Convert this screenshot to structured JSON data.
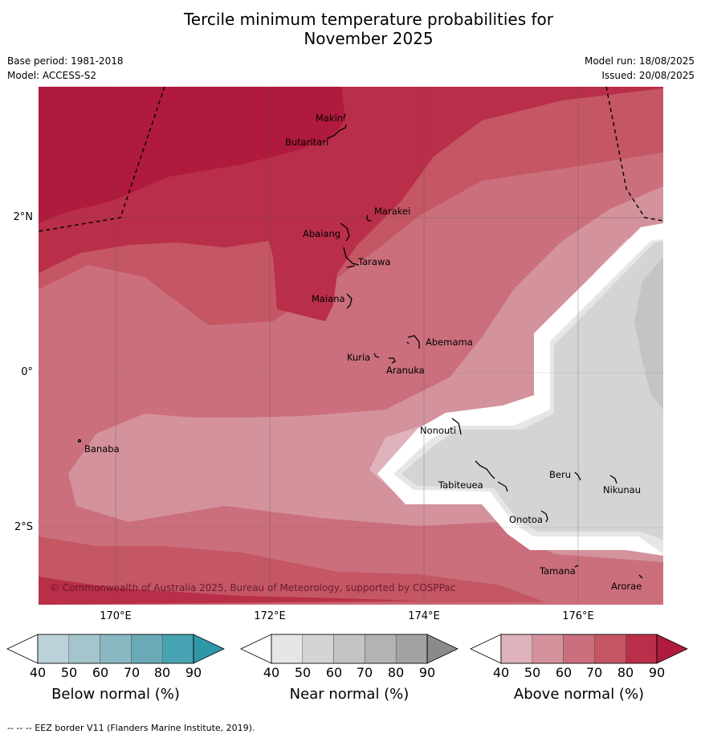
{
  "title": "Tercile minimum temperature probabilities for\nNovember 2025",
  "title_line1": "Tercile minimum temperature probabilities for",
  "title_line2": "November 2025",
  "base_period": "Base period: 1981-2018",
  "model": "Model: ACCESS-S2",
  "model_run": "Model run: 18/08/2025",
  "issued": "Issued: 20/08/2025",
  "copyright": "© Commonwealth of Australia 2025, Bureau of Meteorology, supported by COSPPac",
  "footer": "--  --  -- EEZ border V11 (Flanders Marine Institute, 2019).",
  "axes": {
    "lat_ticks": [
      "2°N",
      "0°",
      "2°S"
    ],
    "lon_ticks": [
      "170°E",
      "172°E",
      "174°E",
      "176°E"
    ]
  },
  "places": [
    "Makin",
    "Butaritari",
    "Marakei",
    "Abaiang",
    "Tarawa",
    "Maiana",
    "Abemama",
    "Kuria",
    "Aranuka",
    "Banaba",
    "Nonouti",
    "Tabiteuea",
    "Beru",
    "Nikunau",
    "Onotoa",
    "Tamana",
    "Arorae"
  ],
  "colorbars": [
    {
      "title": "Below normal (%)",
      "ticks": [
        "40",
        "50",
        "60",
        "70",
        "80",
        "90"
      ],
      "colors": [
        "#bcd2da",
        "#a5c5cd",
        "#8ab8c2",
        "#6aaab7",
        "#47a3b2",
        "#2e97a8"
      ]
    },
    {
      "title": "Near normal (%)",
      "ticks": [
        "40",
        "50",
        "60",
        "70",
        "80",
        "90"
      ],
      "colors": [
        "#e6e6e6",
        "#d4d4d4",
        "#c4c4c4",
        "#b3b3b3",
        "#a2a2a2",
        "#8a8a8a"
      ]
    },
    {
      "title": "Above normal (%)",
      "ticks": [
        "40",
        "50",
        "60",
        "70",
        "80",
        "90"
      ],
      "colors": [
        "#e0b3bc",
        "#d4929c",
        "#cb6f7c",
        "#c55664",
        "#b92e48",
        "#b01a3c"
      ]
    }
  ],
  "colors": {
    "above_90": "#b01a3c",
    "above_80": "#b92e48",
    "above_70": "#c55664",
    "above_60": "#cb6f7c",
    "above_50": "#d4929c",
    "above_40": "#e0b3bc",
    "near_50": "#d4d4d4",
    "near_60": "#c4c4c4",
    "near_40": "#e6e6e6",
    "neutral": "#ffffff"
  }
}
